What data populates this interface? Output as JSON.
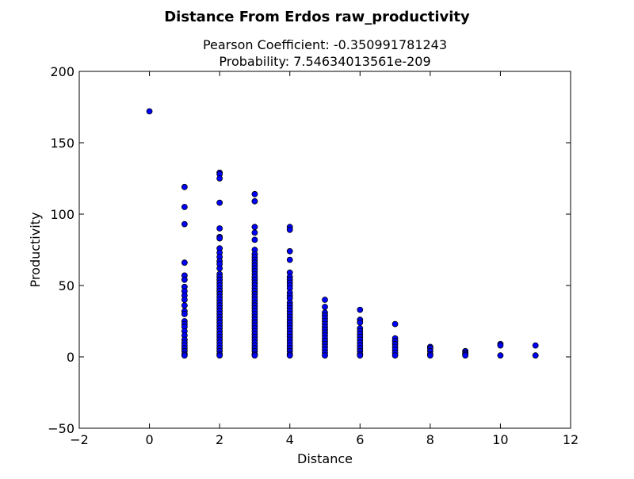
{
  "chart_data": {
    "type": "scatter",
    "title": "Distance From Erdos raw_productivity",
    "subtitle_line1": "Pearson Coefficient: -0.350991781243",
    "subtitle_line2": "Probability: 7.54634013561e-209",
    "xlabel": "Distance",
    "ylabel": "Productivity",
    "xlim": [
      -2,
      12
    ],
    "ylim": [
      -50,
      200
    ],
    "xticks": [
      -2,
      0,
      2,
      4,
      6,
      8,
      10,
      12
    ],
    "yticks": [
      -50,
      0,
      50,
      100,
      150,
      200
    ],
    "grid": false,
    "marker_color": "#0000ff",
    "marker_edge": "#000000",
    "series": [
      {
        "points": [
          [
            0,
            172
          ],
          [
            1,
            119
          ],
          [
            1,
            105
          ],
          [
            1,
            93
          ],
          [
            1,
            66
          ],
          [
            1,
            57
          ],
          [
            1,
            54
          ],
          [
            1,
            49
          ],
          [
            1,
            46
          ],
          [
            1,
            43
          ],
          [
            1,
            40
          ],
          [
            1,
            36
          ],
          [
            1,
            32
          ],
          [
            1,
            30
          ],
          [
            1,
            25
          ],
          [
            1,
            23
          ],
          [
            1,
            21
          ],
          [
            1,
            18
          ],
          [
            1,
            15
          ],
          [
            1,
            12
          ],
          [
            1,
            10
          ],
          [
            1,
            8
          ],
          [
            1,
            6
          ],
          [
            1,
            4
          ],
          [
            1,
            2
          ],
          [
            1,
            1
          ],
          [
            2,
            129
          ],
          [
            2,
            128
          ],
          [
            2,
            125
          ],
          [
            2,
            108
          ],
          [
            2,
            90
          ],
          [
            2,
            84
          ],
          [
            2,
            83
          ],
          [
            2,
            76
          ],
          [
            2,
            73
          ],
          [
            2,
            70
          ],
          [
            2,
            67
          ],
          [
            2,
            65
          ],
          [
            2,
            62
          ],
          [
            2,
            58
          ],
          [
            2,
            56
          ],
          [
            2,
            54
          ],
          [
            2,
            52
          ],
          [
            2,
            50
          ],
          [
            2,
            48
          ],
          [
            2,
            46
          ],
          [
            2,
            44
          ],
          [
            2,
            42
          ],
          [
            2,
            40
          ],
          [
            2,
            38
          ],
          [
            2,
            36
          ],
          [
            2,
            34
          ],
          [
            2,
            32
          ],
          [
            2,
            30
          ],
          [
            2,
            28
          ],
          [
            2,
            26
          ],
          [
            2,
            24
          ],
          [
            2,
            22
          ],
          [
            2,
            20
          ],
          [
            2,
            18
          ],
          [
            2,
            16
          ],
          [
            2,
            14
          ],
          [
            2,
            12
          ],
          [
            2,
            10
          ],
          [
            2,
            8
          ],
          [
            2,
            6
          ],
          [
            2,
            4
          ],
          [
            2,
            2
          ],
          [
            2,
            1
          ],
          [
            3,
            114
          ],
          [
            3,
            109
          ],
          [
            3,
            91
          ],
          [
            3,
            87
          ],
          [
            3,
            82
          ],
          [
            3,
            75
          ],
          [
            3,
            72
          ],
          [
            3,
            70
          ],
          [
            3,
            68
          ],
          [
            3,
            66
          ],
          [
            3,
            64
          ],
          [
            3,
            62
          ],
          [
            3,
            60
          ],
          [
            3,
            58
          ],
          [
            3,
            56
          ],
          [
            3,
            54
          ],
          [
            3,
            52
          ],
          [
            3,
            50
          ],
          [
            3,
            48
          ],
          [
            3,
            46
          ],
          [
            3,
            44
          ],
          [
            3,
            42
          ],
          [
            3,
            40
          ],
          [
            3,
            38
          ],
          [
            3,
            36
          ],
          [
            3,
            34
          ],
          [
            3,
            32
          ],
          [
            3,
            30
          ],
          [
            3,
            28
          ],
          [
            3,
            26
          ],
          [
            3,
            24
          ],
          [
            3,
            22
          ],
          [
            3,
            20
          ],
          [
            3,
            18
          ],
          [
            3,
            16
          ],
          [
            3,
            14
          ],
          [
            3,
            12
          ],
          [
            3,
            10
          ],
          [
            3,
            8
          ],
          [
            3,
            6
          ],
          [
            3,
            4
          ],
          [
            3,
            2
          ],
          [
            3,
            1
          ],
          [
            4,
            91
          ],
          [
            4,
            89
          ],
          [
            4,
            74
          ],
          [
            4,
            68
          ],
          [
            4,
            59
          ],
          [
            4,
            56
          ],
          [
            4,
            54
          ],
          [
            4,
            52
          ],
          [
            4,
            50
          ],
          [
            4,
            48
          ],
          [
            4,
            45
          ],
          [
            4,
            43
          ],
          [
            4,
            41
          ],
          [
            4,
            38
          ],
          [
            4,
            36
          ],
          [
            4,
            34
          ],
          [
            4,
            32
          ],
          [
            4,
            30
          ],
          [
            4,
            28
          ],
          [
            4,
            26
          ],
          [
            4,
            24
          ],
          [
            4,
            22
          ],
          [
            4,
            20
          ],
          [
            4,
            18
          ],
          [
            4,
            16
          ],
          [
            4,
            14
          ],
          [
            4,
            12
          ],
          [
            4,
            10
          ],
          [
            4,
            8
          ],
          [
            4,
            6
          ],
          [
            4,
            4
          ],
          [
            4,
            2
          ],
          [
            4,
            1
          ],
          [
            5,
            40
          ],
          [
            5,
            35
          ],
          [
            5,
            31
          ],
          [
            5,
            29
          ],
          [
            5,
            27
          ],
          [
            5,
            25
          ],
          [
            5,
            23
          ],
          [
            5,
            21
          ],
          [
            5,
            19
          ],
          [
            5,
            17
          ],
          [
            5,
            15
          ],
          [
            5,
            13
          ],
          [
            5,
            11
          ],
          [
            5,
            9
          ],
          [
            5,
            7
          ],
          [
            5,
            5
          ],
          [
            5,
            3
          ],
          [
            5,
            1
          ],
          [
            6,
            33
          ],
          [
            6,
            26
          ],
          [
            6,
            24
          ],
          [
            6,
            20
          ],
          [
            6,
            18
          ],
          [
            6,
            16
          ],
          [
            6,
            14
          ],
          [
            6,
            12
          ],
          [
            6,
            10
          ],
          [
            6,
            8
          ],
          [
            6,
            6
          ],
          [
            6,
            4
          ],
          [
            6,
            2
          ],
          [
            6,
            1
          ],
          [
            7,
            23
          ],
          [
            7,
            13
          ],
          [
            7,
            11
          ],
          [
            7,
            9
          ],
          [
            7,
            7
          ],
          [
            7,
            5
          ],
          [
            7,
            3
          ],
          [
            7,
            1
          ],
          [
            8,
            7
          ],
          [
            8,
            6
          ],
          [
            8,
            4
          ],
          [
            8,
            2
          ],
          [
            8,
            1
          ],
          [
            9,
            4
          ],
          [
            9,
            3
          ],
          [
            9,
            2
          ],
          [
            9,
            1
          ],
          [
            10,
            9
          ],
          [
            10,
            8
          ],
          [
            10,
            1
          ],
          [
            11,
            8
          ],
          [
            11,
            1
          ]
        ]
      }
    ]
  }
}
